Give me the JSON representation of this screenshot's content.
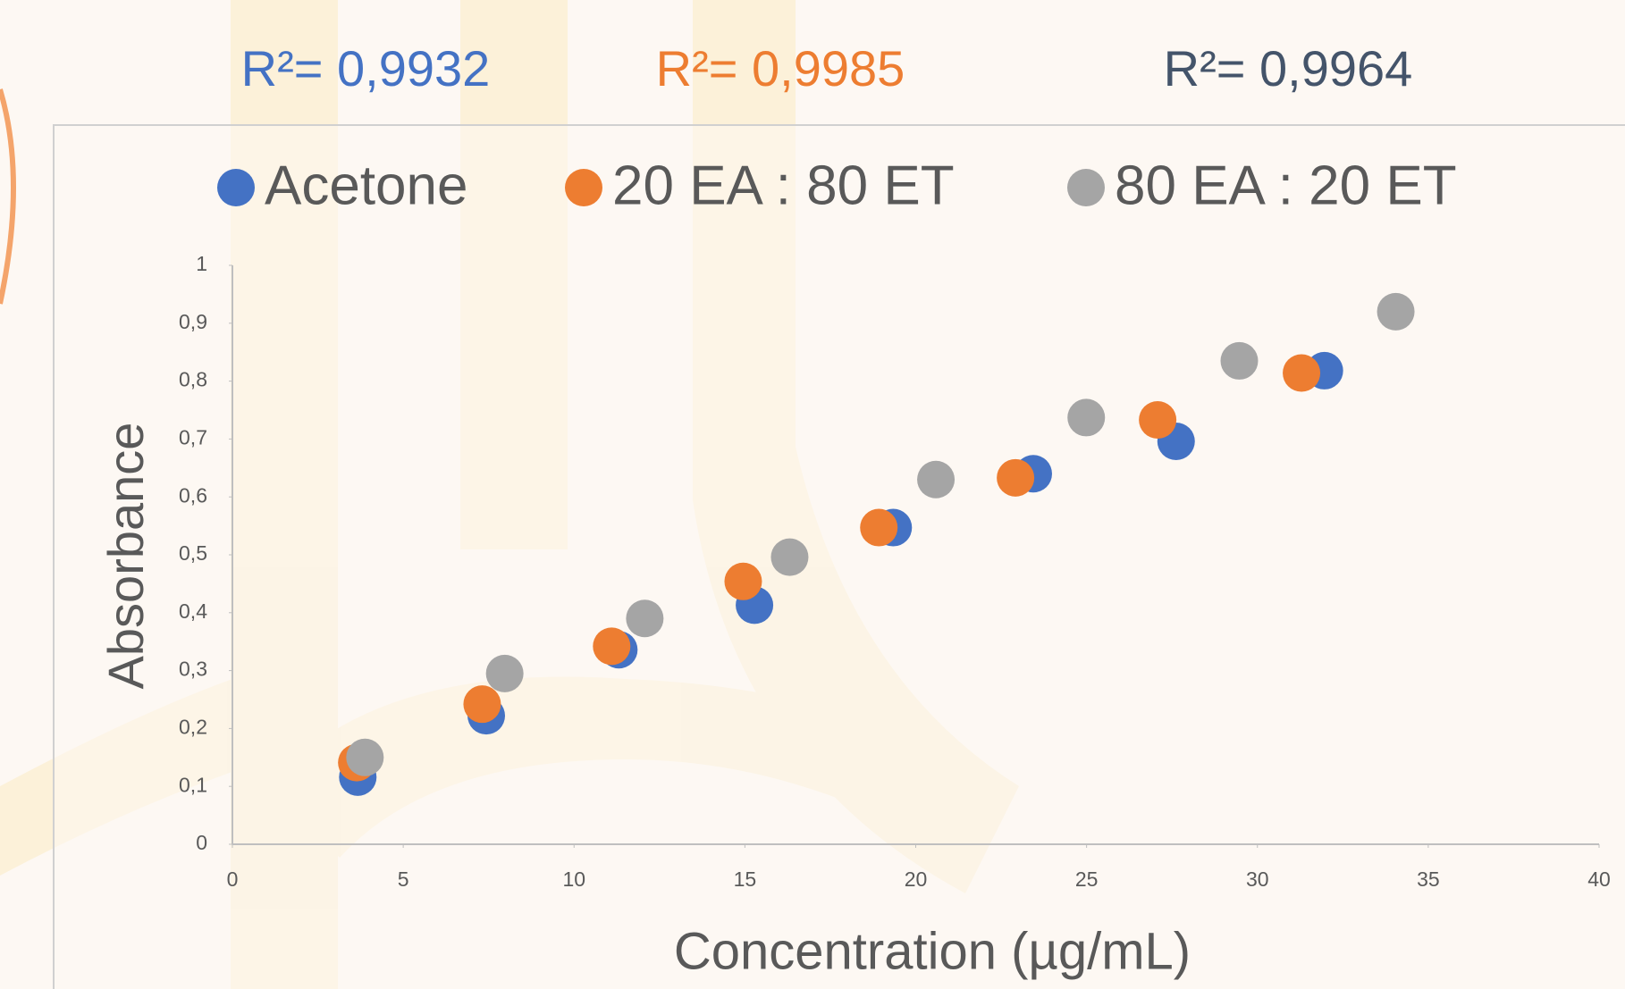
{
  "chart_data": {
    "type": "scatter",
    "annotations": [
      {
        "text": "R²= 0,9932",
        "color": "#4472c4"
      },
      {
        "text": "R²= 0,9985",
        "color": "#ed7d31"
      },
      {
        "text": "R²= 0,9964",
        "color": "#44546a"
      }
    ],
    "x_label": "Concentration (µg/mL)",
    "y_label": "Absorbance",
    "xlim": [
      0,
      40
    ],
    "xticks": [
      0,
      5,
      10,
      15,
      20,
      25,
      30,
      35,
      40
    ],
    "ylim": [
      0,
      1
    ],
    "yticks": [
      0,
      {
        "value": 0.1,
        "label": "0,1"
      },
      {
        "value": 0.2,
        "label": "0,2"
      },
      {
        "value": 0.3,
        "label": "0,3"
      },
      {
        "value": 0.4,
        "label": "0,4"
      },
      {
        "value": 0.5,
        "label": "0,5"
      },
      {
        "value": 0.6,
        "label": "0,6"
      },
      {
        "value": 0.7,
        "label": "0,7"
      },
      {
        "value": 0.8,
        "label": "0,8"
      },
      {
        "value": 0.9,
        "label": "0,9"
      },
      1
    ],
    "grid": false,
    "legend": "top",
    "series": [
      {
        "name": "Acetone",
        "color": "#4472c4",
        "x": [
          3.67,
          7.43,
          11.31,
          15.28,
          19.34,
          23.44,
          27.62,
          31.96
        ],
        "values": [
          0.116,
          0.222,
          0.336,
          0.413,
          0.547,
          0.64,
          0.696,
          0.818
        ]
      },
      {
        "name": "20 EA : 80 ET",
        "color": "#ed7d31",
        "x": [
          3.64,
          7.31,
          11.1,
          14.95,
          18.92,
          22.92,
          27.08,
          31.29
        ],
        "values": [
          0.141,
          0.242,
          0.342,
          0.454,
          0.547,
          0.633,
          0.733,
          0.814
        ]
      },
      {
        "name": "80 EA : 20 ET",
        "color": "#a5a5a5",
        "x": [
          3.88,
          7.97,
          12.07,
          16.31,
          20.59,
          24.99,
          29.47,
          34.05
        ],
        "values": [
          0.15,
          0.295,
          0.39,
          0.496,
          0.63,
          0.737,
          0.835,
          0.92
        ]
      }
    ]
  }
}
